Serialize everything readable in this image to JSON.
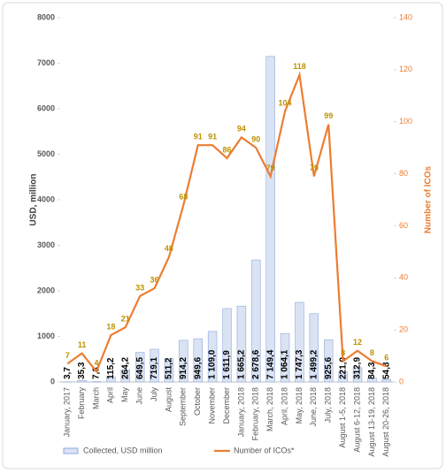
{
  "chart_data": {
    "type": "combo",
    "categories": [
      "January, 2017",
      "February",
      "March",
      "April",
      "May",
      "June",
      "July",
      "August",
      "September",
      "October",
      "November",
      "December",
      "January, 2018",
      "February, 2018",
      "March, 2018",
      "April, 2018",
      "May, 2018",
      "June, 2018",
      "July, 2018",
      "August 1-5, 2018",
      "August 6-12, 2018",
      "August 13-19, 2018",
      "August 20-26, 2018"
    ],
    "series": [
      {
        "name": "Collected, USD million",
        "type": "bar",
        "color": "#dae3f3",
        "stroke": "#8faadc",
        "values": [
          3.7,
          35.3,
          7.3,
          115.2,
          264.2,
          649.5,
          719.1,
          511.2,
          914.2,
          949.6,
          1109.0,
          1611.9,
          1665.2,
          2678.6,
          7149.4,
          1064.1,
          1747.3,
          1499.2,
          925.6,
          221.0,
          312.9,
          84.3,
          54.8
        ],
        "value_labels": [
          "3,7",
          "35,3",
          "7,3",
          "115,2",
          "264,2",
          "649,5",
          "719,1",
          "511,2",
          "914,2",
          "949,6",
          "1 109,0",
          "1 611,9",
          "1 665,2",
          "2 678,6",
          "7 149,4",
          "1 064,1",
          "1 747,3",
          "1 499,2",
          "925,6",
          "221,0",
          "312,9",
          "84,3",
          "54,8"
        ]
      },
      {
        "name": "Number of ICOs*",
        "type": "line",
        "axis": "y2",
        "color": "#ed7d31",
        "values": [
          7,
          11,
          4,
          18,
          21,
          33,
          36,
          48,
          68,
          91,
          91,
          86,
          94,
          90,
          79,
          104,
          118,
          79,
          99,
          8,
          12,
          8,
          6
        ]
      }
    ],
    "ylabel": "USD, million",
    "y2label": "Number of ICOs",
    "ylim": [
      0,
      8000
    ],
    "yticks": [
      0,
      1000,
      2000,
      3000,
      4000,
      5000,
      6000,
      7000,
      8000
    ],
    "y2lim": [
      0,
      140
    ],
    "y2ticks": [
      0,
      20,
      40,
      60,
      80,
      100,
      120,
      140
    ],
    "grid": false,
    "legend": "bottom"
  }
}
